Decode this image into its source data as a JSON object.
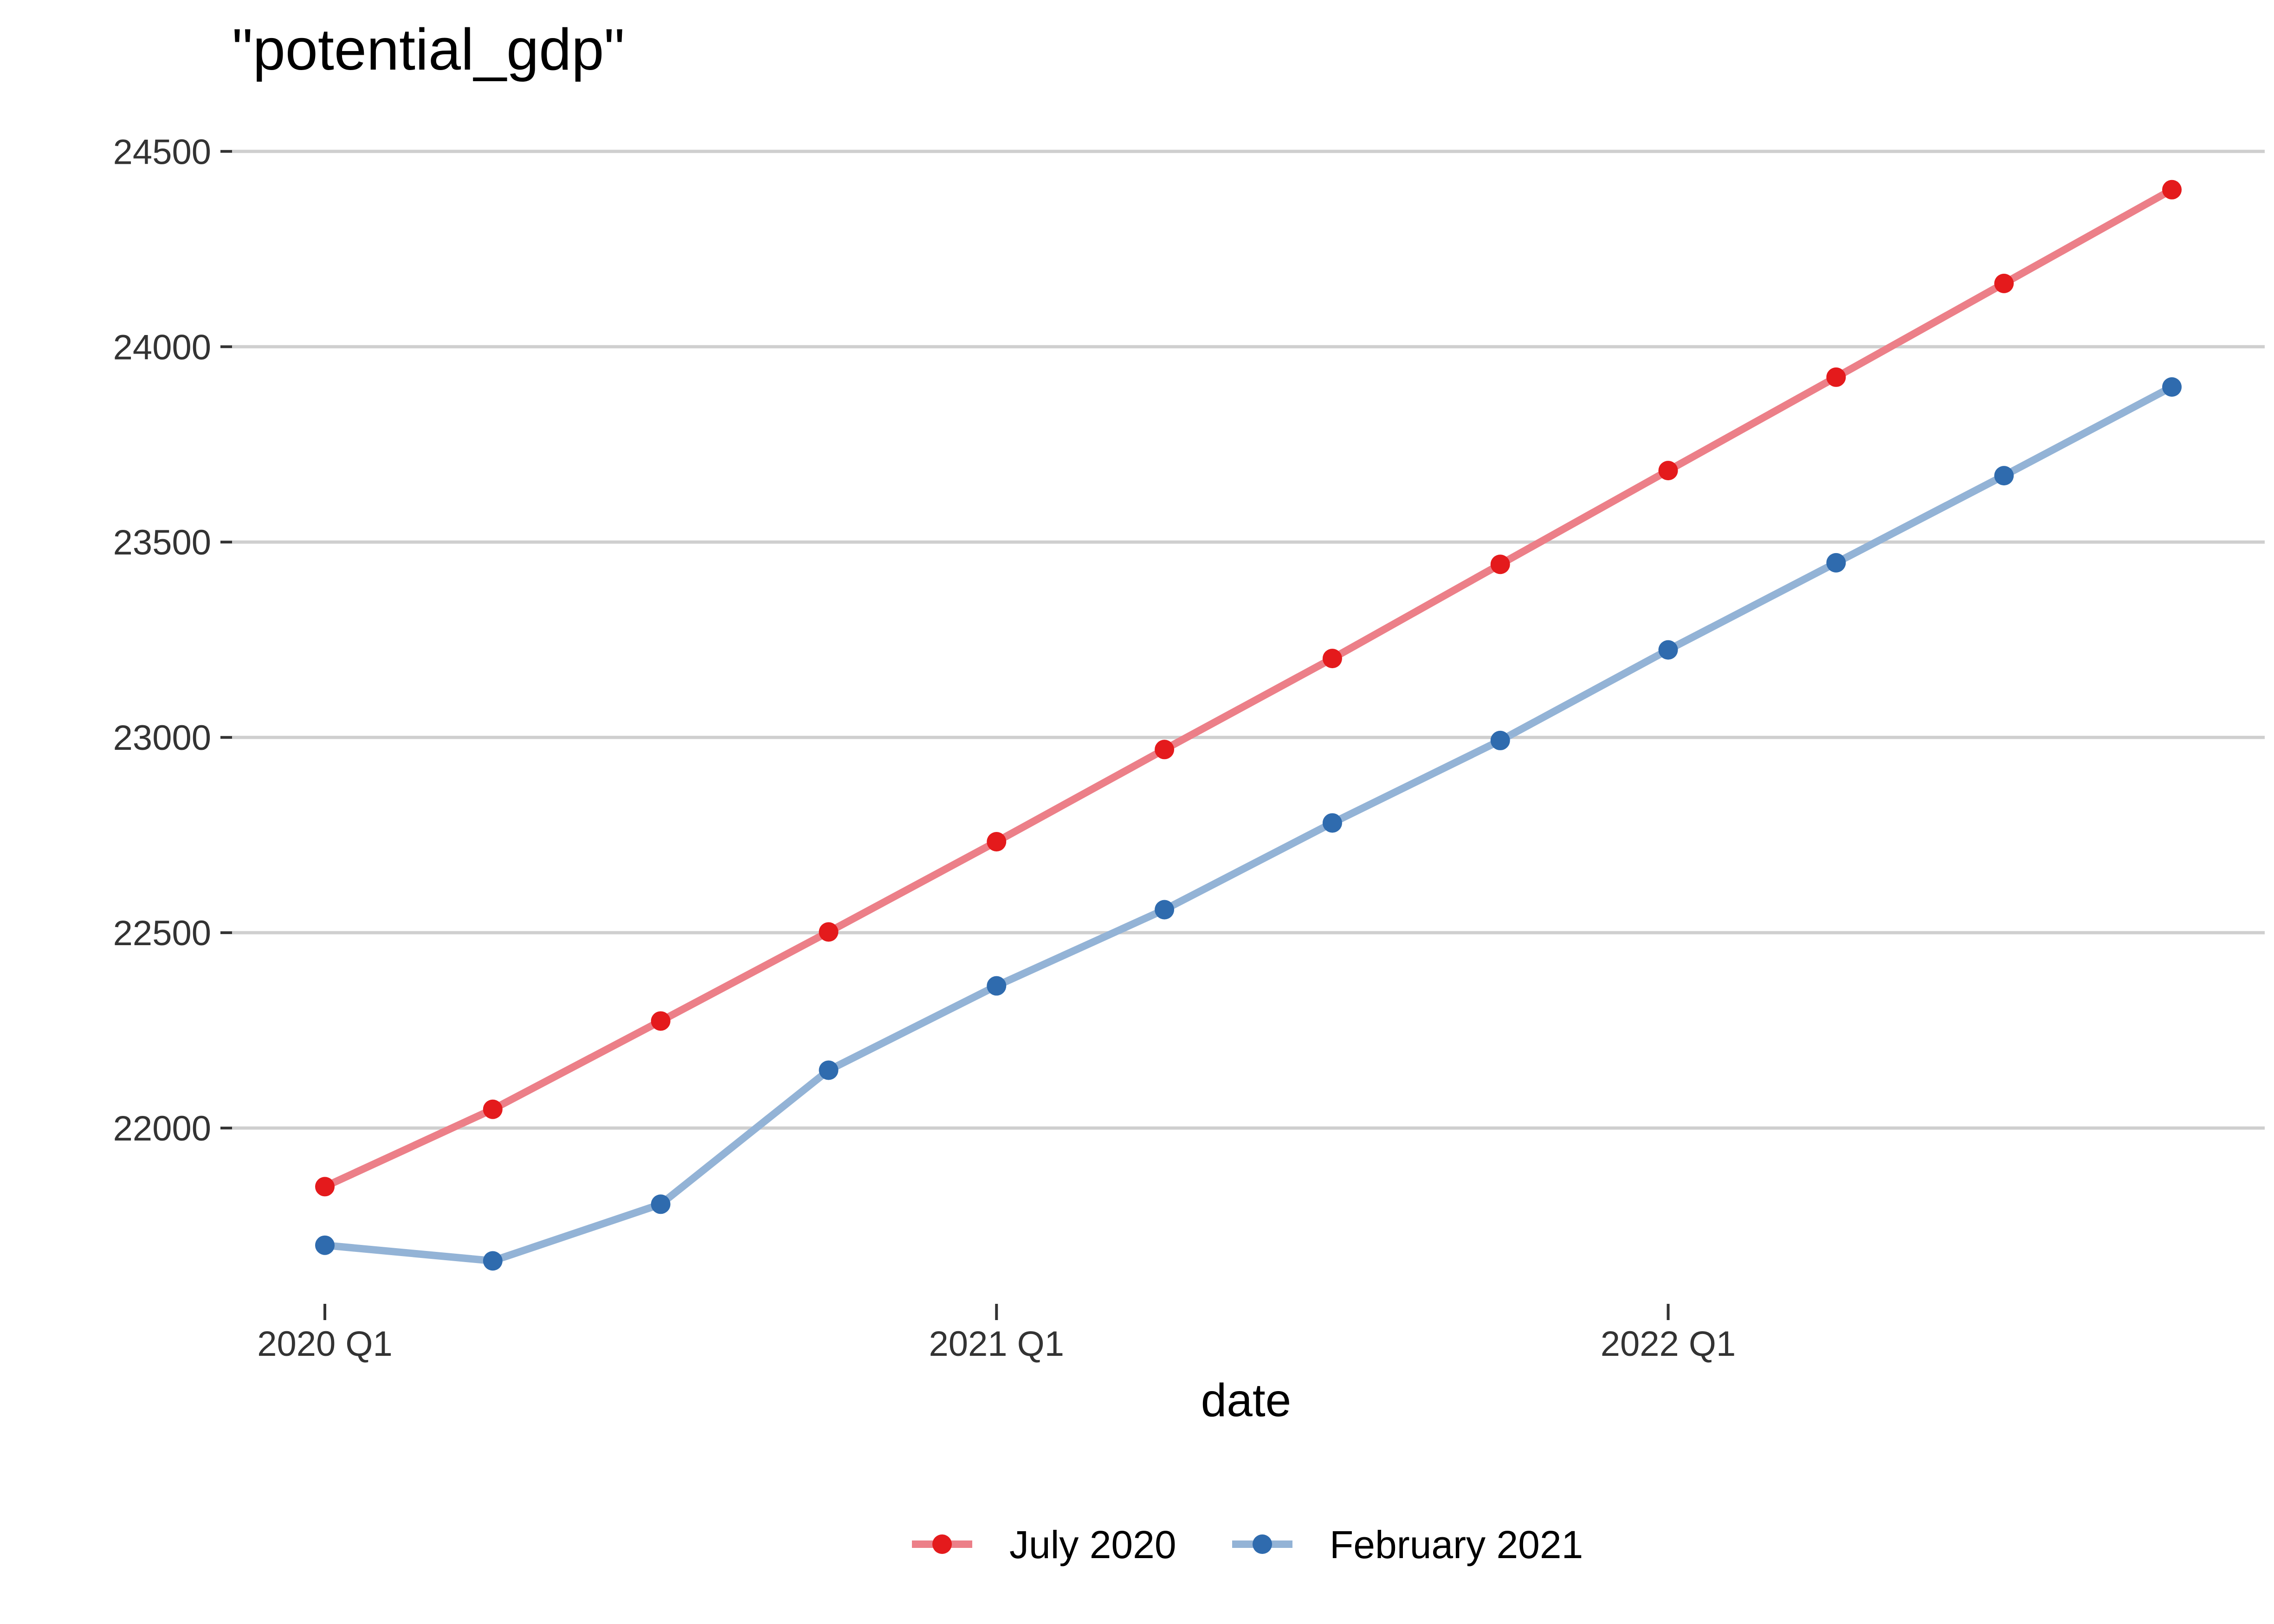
{
  "chart_data": {
    "type": "line",
    "title": "\"potential_gdp\"",
    "xlabel": "date",
    "ylabel": "",
    "x": [
      "2020 Q1",
      "2020 Q2",
      "2020 Q3",
      "2020 Q4",
      "2021 Q1",
      "2021 Q2",
      "2021 Q3",
      "2021 Q4",
      "2022 Q1",
      "2022 Q2",
      "2022 Q3",
      "2022 Q4"
    ],
    "x_ticks": [
      "2020 Q1",
      "2021 Q1",
      "2022 Q1"
    ],
    "y_ticks": [
      22000,
      22500,
      23000,
      23500,
      24000,
      24500
    ],
    "ylim": [
      21550,
      24650
    ],
    "grid": "horizontal major",
    "legend_position": "bottom",
    "series": [
      {
        "name": "July 2020",
        "color": "#E41A1C",
        "line_color": "#EC7F88",
        "values": [
          21850,
          22048,
          22274,
          22502,
          22733,
          22969,
          23202,
          23443,
          23683,
          23922,
          24162,
          24402
        ]
      },
      {
        "name": "February 2021",
        "color": "#2F6BAE",
        "line_color": "#93B3D6",
        "values": [
          21700,
          21660,
          21805,
          22148,
          22364,
          22559,
          22781,
          22992,
          23224,
          23447,
          23670,
          23897
        ]
      }
    ]
  }
}
